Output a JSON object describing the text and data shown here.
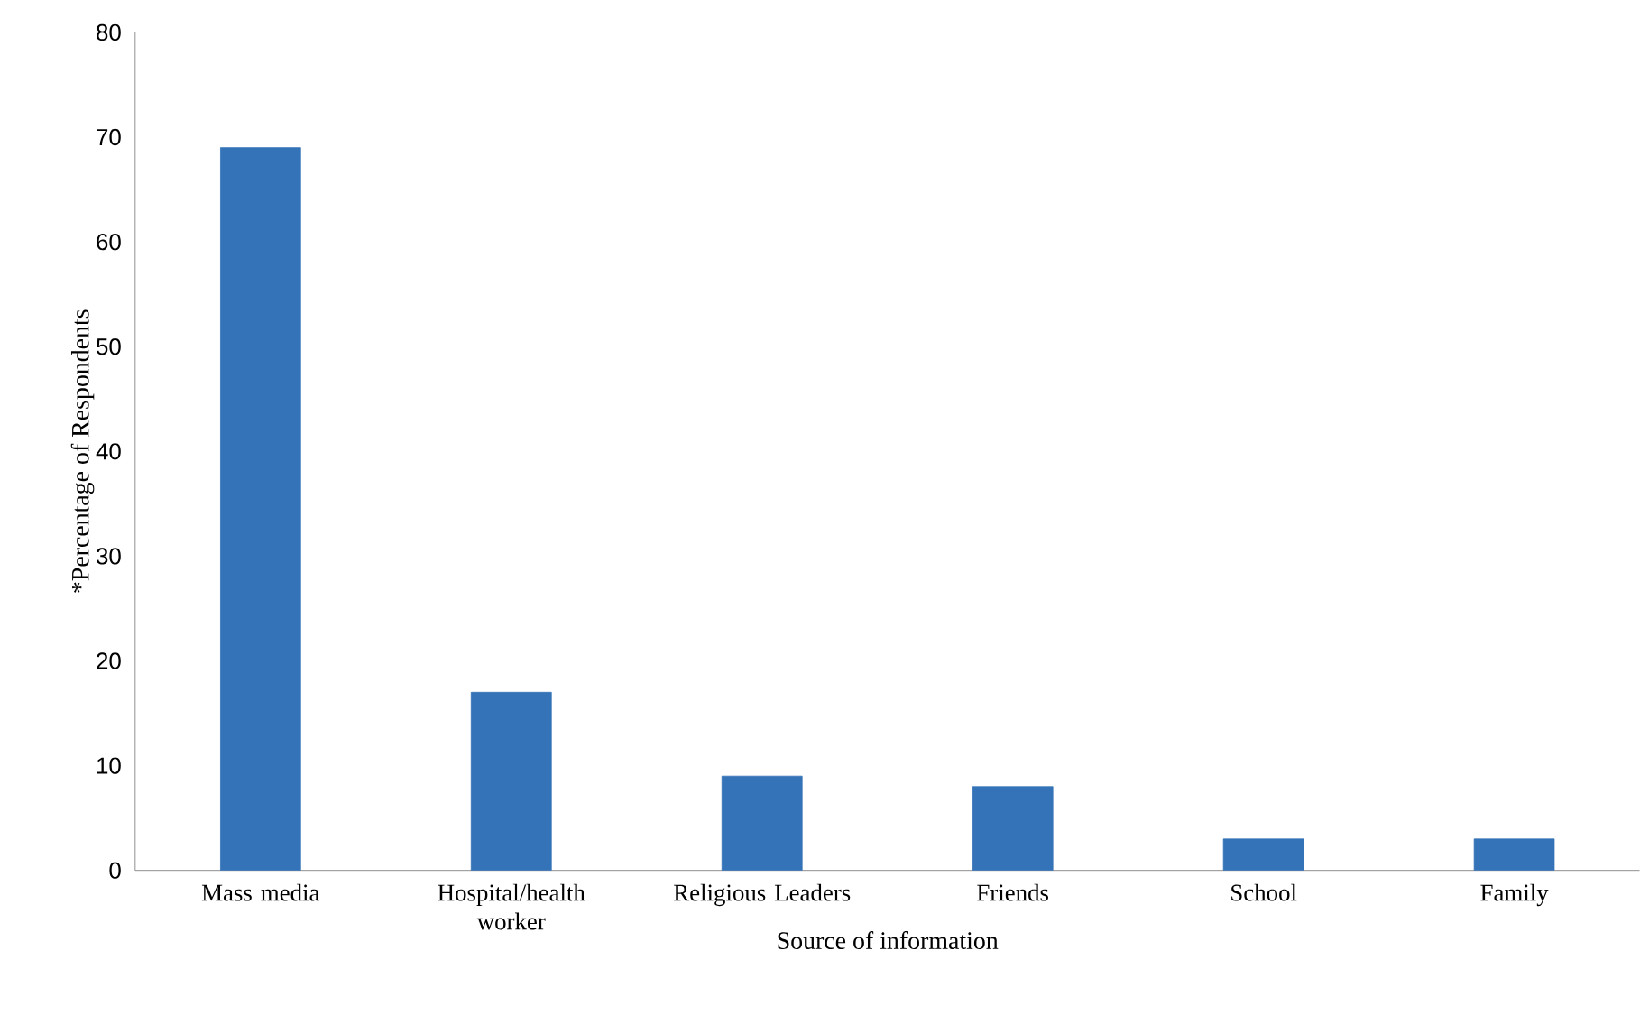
{
  "chart_data": {
    "type": "bar",
    "xlabel": "Source of information",
    "ylabel": "*Percentage of Respondents",
    "categories": [
      "Mass media",
      "Hospital/health worker",
      "Religious Leaders",
      "Friends",
      "School",
      "Family"
    ],
    "values": [
      69,
      17,
      9,
      8,
      3,
      3
    ],
    "color": "#3473b7",
    "ylim": [
      0,
      80
    ],
    "yticks": [
      0,
      10,
      20,
      30,
      40,
      50,
      60,
      70,
      80
    ]
  }
}
